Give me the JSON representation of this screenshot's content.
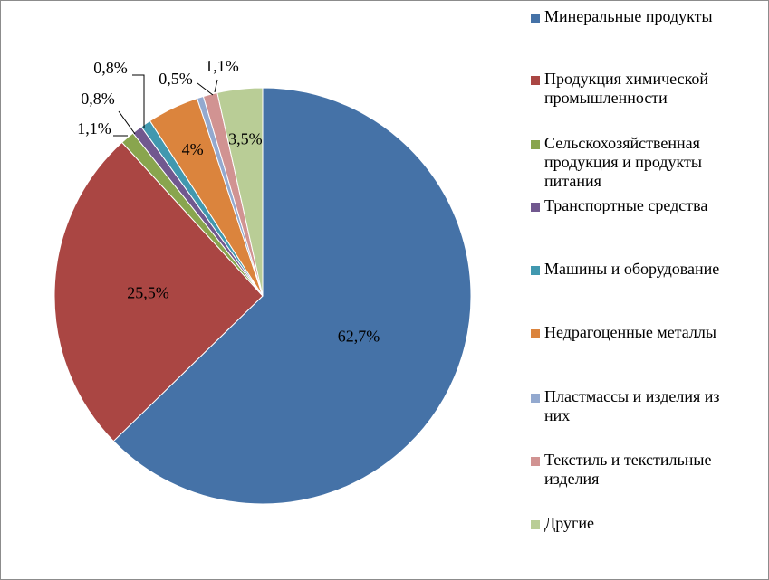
{
  "chart_data": {
    "type": "pie",
    "title": "",
    "start_angle_deg": 0,
    "direction": "clockwise",
    "legend_position": "right",
    "slices": [
      {
        "name": "Минеральные продукты",
        "value": 62.7,
        "label": "62,7%",
        "color": "#4572a7"
      },
      {
        "name": "Продукция химической промышленности",
        "value": 25.5,
        "label": "25,5%",
        "color": "#aa4643"
      },
      {
        "name": "Сельскохозяйственная продукция и продукты питания",
        "value": 1.1,
        "label": "1,1%",
        "color": "#89a54e"
      },
      {
        "name": "Транспортные средства",
        "value": 0.8,
        "label": "0,8%",
        "color": "#71588f"
      },
      {
        "name": "Машины и оборудование",
        "value": 0.8,
        "label": "0,8%",
        "color": "#4198af"
      },
      {
        "name": "Недрагоценные металлы",
        "value": 4,
        "label": "4%",
        "color": "#db843d"
      },
      {
        "name": "Пластмассы и изделия из них",
        "value": 0.5,
        "label": "0,5%",
        "color": "#93a9cf"
      },
      {
        "name": "Текстиль и текстильные изделия",
        "value": 1.1,
        "label": "1,1%",
        "color": "#d19392"
      },
      {
        "name": "Другие",
        "value": 3.5,
        "label": "3,5%",
        "color": "#b9cd96"
      }
    ]
  },
  "legend": [
    {
      "lines": [
        "Минеральные продукты"
      ]
    },
    {
      "lines": [
        "Продукция химической",
        "промышленности"
      ]
    },
    {
      "lines": [
        "Сельскохозяйственная",
        "продукция и продукты",
        "питания"
      ]
    },
    {
      "lines": [
        "Транспортные средства"
      ]
    },
    {
      "lines": [
        "Машины и оборудование"
      ]
    },
    {
      "lines": [
        "Недрагоценные металлы"
      ]
    },
    {
      "lines": [
        "Пластмассы и изделия из",
        "них"
      ]
    },
    {
      "lines": [
        "Текстиль и текстильные",
        "изделия"
      ]
    },
    {
      "lines": [
        "Другие"
      ]
    }
  ]
}
